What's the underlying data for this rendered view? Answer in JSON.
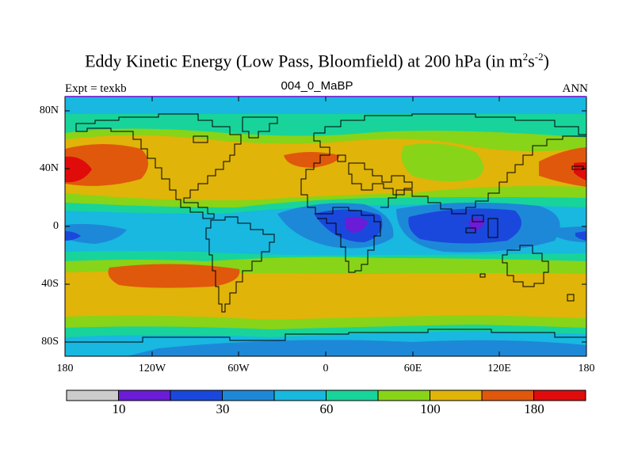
{
  "title": {
    "main": "Eddy Kinetic Energy (Low Pass, Bloomfield) at 200 hPa (in m",
    "sup1": "2",
    "mid": "s",
    "sup2": "-2",
    "end": ")"
  },
  "subtitle": {
    "left": "Expt = texkb",
    "center": "004_0_MaBP",
    "right": "ANN"
  },
  "map": {
    "lat_labels": [
      "80N",
      "40N",
      "0",
      "40S",
      "80S"
    ],
    "lon_labels": [
      "180",
      "120W",
      "60W",
      "0",
      "60E",
      "120E",
      "180"
    ]
  },
  "colorbar": {
    "colors": [
      "#cccccc",
      "#6a1cd6",
      "#1a48dc",
      "#1e88d8",
      "#18b8e0",
      "#18d49a",
      "#88d418",
      "#e0b408",
      "#e0580c",
      "#e00c0c"
    ],
    "labels": [
      "10",
      "30",
      "60",
      "100",
      "180"
    ]
  }
}
